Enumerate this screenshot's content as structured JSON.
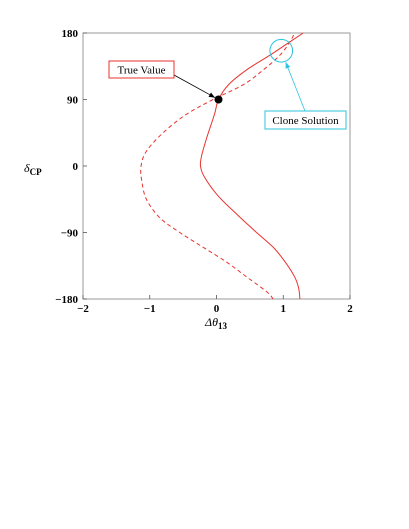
{
  "chart_data": {
    "type": "line",
    "title": "",
    "xlabel": {
      "symbol": "Δθ",
      "sub": "13"
    },
    "ylabel": {
      "symbol": "δ",
      "sub": "CP"
    },
    "xlim": [
      -2,
      2
    ],
    "ylim": [
      -180,
      180
    ],
    "xticks": [
      -2,
      -1,
      0,
      1,
      2
    ],
    "yticks": [
      -180,
      -90,
      0,
      90,
      180
    ],
    "xtick_labels": [
      "−2",
      "−1",
      "0",
      "1",
      "2"
    ],
    "ytick_labels": [
      "−180",
      "−90",
      "0",
      "90",
      "180"
    ],
    "grid": false,
    "legend": "none",
    "colors": {
      "curve": "#e8332e",
      "true_box": "#e8332e",
      "clone": "#2cc3de"
    },
    "series": [
      {
        "style": "solid",
        "points": [
          [
            1.25,
            -180
          ],
          [
            1.23,
            -165
          ],
          [
            1.17,
            -150
          ],
          [
            1.03,
            -130
          ],
          [
            0.85,
            -110
          ],
          [
            0.6,
            -90
          ],
          [
            0.3,
            -65
          ],
          [
            0.02,
            -40
          ],
          [
            -0.18,
            -15
          ],
          [
            -0.24,
            0
          ],
          [
            -0.22,
            15
          ],
          [
            -0.14,
            40
          ],
          [
            -0.03,
            70
          ],
          [
            0.03,
            90
          ],
          [
            0.18,
            110
          ],
          [
            0.45,
            130
          ],
          [
            0.8,
            150
          ],
          [
            1.05,
            165
          ],
          [
            1.3,
            180
          ]
        ]
      },
      {
        "style": "dashed",
        "points": [
          [
            0.85,
            -180
          ],
          [
            0.75,
            -170
          ],
          [
            0.45,
            -150
          ],
          [
            0.15,
            -130
          ],
          [
            -0.2,
            -110
          ],
          [
            -0.55,
            -90
          ],
          [
            -0.85,
            -70
          ],
          [
            -1.05,
            -45
          ],
          [
            -1.12,
            -20
          ],
          [
            -1.13,
            0
          ],
          [
            -1.05,
            20
          ],
          [
            -0.8,
            45
          ],
          [
            -0.45,
            70
          ],
          [
            -0.05,
            90
          ],
          [
            0.4,
            110
          ],
          [
            0.7,
            130
          ],
          [
            0.95,
            150
          ],
          [
            1.1,
            168
          ],
          [
            1.17,
            180
          ]
        ]
      }
    ],
    "points": [
      {
        "name": "true-value",
        "x": 0.03,
        "y": 90
      }
    ],
    "clone_circle": {
      "x": 0.97,
      "y": 156,
      "r": 0.17
    },
    "annotations": {
      "true_value": "True Value",
      "clone_solution": "Clone Solution"
    }
  }
}
